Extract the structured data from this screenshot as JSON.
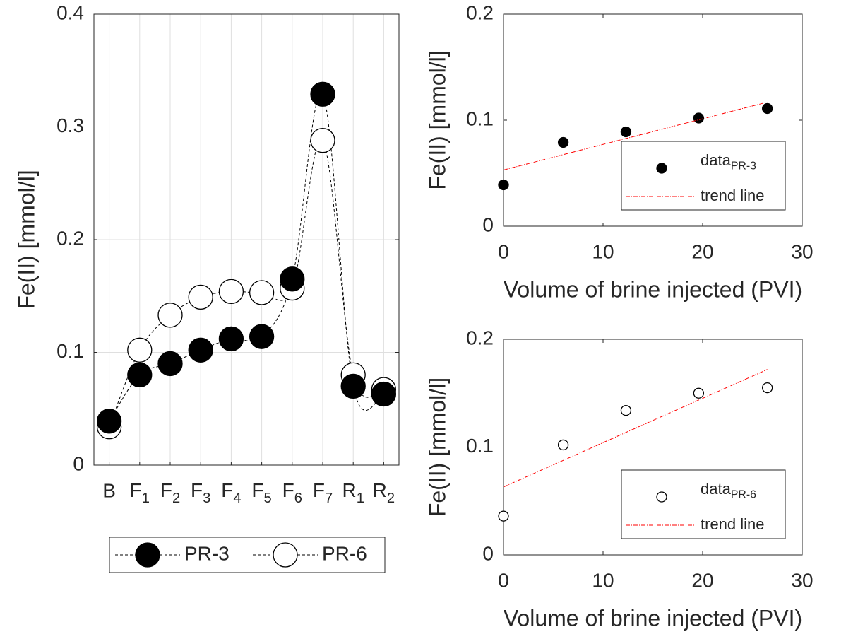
{
  "chart_data": [
    {
      "type": "line",
      "ylabel": "Fe(II) [mmol/l]",
      "categories": [
        "B",
        "F1",
        "F2",
        "F3",
        "F4",
        "F5",
        "F6",
        "F7",
        "R1",
        "R2"
      ],
      "ylim": [
        0,
        0.4
      ],
      "yticks": [
        0,
        0.1,
        0.2,
        0.3,
        0.4
      ],
      "grid": true,
      "legend": "below",
      "series": [
        {
          "name": "PR-3",
          "color": "#000000",
          "marker": "filled",
          "values": [
            0.039,
            0.08,
            0.09,
            0.102,
            0.112,
            0.114,
            0.165,
            0.329,
            0.07,
            0.063
          ]
        },
        {
          "name": "PR-6",
          "color": "#000000",
          "marker": "open",
          "values": [
            0.034,
            0.102,
            0.133,
            0.149,
            0.154,
            0.153,
            0.157,
            0.288,
            0.08,
            0.067
          ]
        }
      ]
    },
    {
      "type": "scatter",
      "xlabel": "Volume of brine injected (PVI)",
      "ylabel": "Fe(II) [mmol/l]",
      "xlim": [
        0,
        30
      ],
      "xticks": [
        0,
        10,
        20,
        30
      ],
      "ylim": [
        0,
        0.2
      ],
      "yticks": [
        0,
        0.1,
        0.2
      ],
      "grid": false,
      "legend": "lower right",
      "series": [
        {
          "name": "dataPR-3",
          "color": "#000000",
          "marker": "filled",
          "x": [
            0,
            6,
            12.3,
            19.6,
            26.5
          ],
          "values": [
            0.039,
            0.079,
            0.089,
            0.102,
            0.111
          ]
        },
        {
          "name": "trend line",
          "color": "#ff0000",
          "marker": "none",
          "x": [
            0,
            26.5
          ],
          "values": [
            0.053,
            0.117
          ]
        }
      ]
    },
    {
      "type": "scatter",
      "xlabel": "Volume of brine injected (PVI)",
      "ylabel": "Fe(II) [mmol/l]",
      "xlim": [
        0,
        30
      ],
      "xticks": [
        0,
        10,
        20,
        30
      ],
      "ylim": [
        0,
        0.2
      ],
      "yticks": [
        0,
        0.1,
        0.2
      ],
      "grid": false,
      "legend": "lower right",
      "series": [
        {
          "name": "dataPR-6",
          "color": "#000000",
          "marker": "open",
          "x": [
            0,
            6,
            12.3,
            19.6,
            26.5
          ],
          "values": [
            0.036,
            0.102,
            0.134,
            0.15,
            0.155
          ]
        },
        {
          "name": "trend line",
          "color": "#ff0000",
          "marker": "none",
          "x": [
            0,
            26.5
          ],
          "values": [
            0.063,
            0.172
          ]
        }
      ]
    }
  ]
}
